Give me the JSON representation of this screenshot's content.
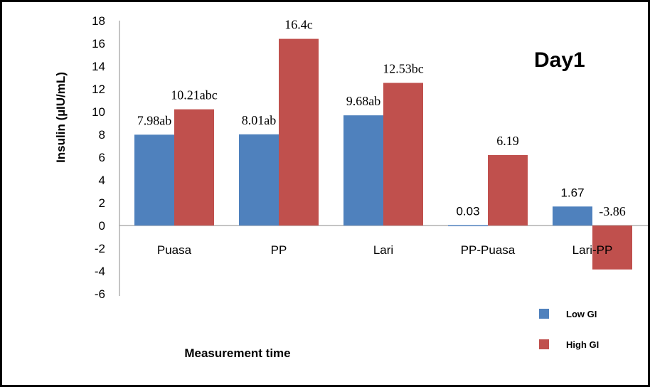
{
  "chart_data": {
    "type": "bar",
    "title": "Day1",
    "xlabel": "Measurement time",
    "ylabel": "Insulin (µIU/mL)",
    "ylim": [
      -6,
      18
    ],
    "yticks": [
      "18",
      "16",
      "14",
      "12",
      "10",
      "8",
      "6",
      "4",
      "2",
      "0",
      "-2",
      "-4",
      "-6"
    ],
    "categories": [
      "Puasa",
      "PP",
      "Lari",
      "PP-Puasa",
      "Lari-PP"
    ],
    "grid": false,
    "legend_position": "bottom-right",
    "series": [
      {
        "name": "Low GI",
        "color": "#4F81BD",
        "values": [
          7.98,
          8.01,
          9.68,
          0.03,
          1.67
        ],
        "labels": [
          "7.98ab",
          "8.01ab",
          "9.68ab",
          "0.03",
          "1.67"
        ]
      },
      {
        "name": "High GI",
        "color": "#C0504D",
        "values": [
          10.21,
          16.4,
          12.53,
          6.19,
          -3.86
        ],
        "labels": [
          "10.21abc",
          "16.4c",
          "12.53bc",
          "6.19",
          "-3.86"
        ]
      }
    ]
  }
}
